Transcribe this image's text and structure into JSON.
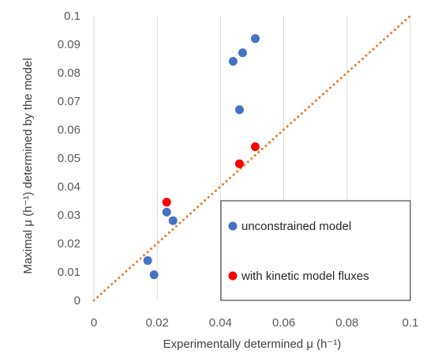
{
  "chart_data": {
    "type": "scatter",
    "title": "",
    "xlabel": "Experimentally determined μ (h⁻¹)",
    "ylabel": "Maximal μ (h⁻¹) determined by the model",
    "xlim": [
      0,
      0.1
    ],
    "ylim": [
      0,
      0.1
    ],
    "x_ticks": [
      "0",
      "0.02",
      "0.04",
      "0.06",
      "0.08",
      "0.1"
    ],
    "y_ticks": [
      "0",
      "0.01",
      "0.02",
      "0.03",
      "0.04",
      "0.05",
      "0.06",
      "0.07",
      "0.08",
      "0.09",
      "0.1"
    ],
    "grid": "vertical",
    "legend_position": "bottom-right",
    "series": [
      {
        "name": "unconstrained model",
        "color": "#4472C4",
        "points": [
          {
            "x": 0.017,
            "y": 0.014
          },
          {
            "x": 0.019,
            "y": 0.009
          },
          {
            "x": 0.023,
            "y": 0.031
          },
          {
            "x": 0.025,
            "y": 0.028
          },
          {
            "x": 0.044,
            "y": 0.084
          },
          {
            "x": 0.046,
            "y": 0.067
          },
          {
            "x": 0.047,
            "y": 0.087
          },
          {
            "x": 0.051,
            "y": 0.092
          }
        ]
      },
      {
        "name": "with kinetic model fluxes",
        "color": "#FF0000",
        "points": [
          {
            "x": 0.023,
            "y": 0.0345
          },
          {
            "x": 0.046,
            "y": 0.048
          },
          {
            "x": 0.051,
            "y": 0.054
          }
        ]
      }
    ],
    "reference_line": {
      "from": [
        0,
        0
      ],
      "to": [
        0.1,
        0.1
      ],
      "style": "dotted",
      "color": "#ED7D31"
    }
  }
}
